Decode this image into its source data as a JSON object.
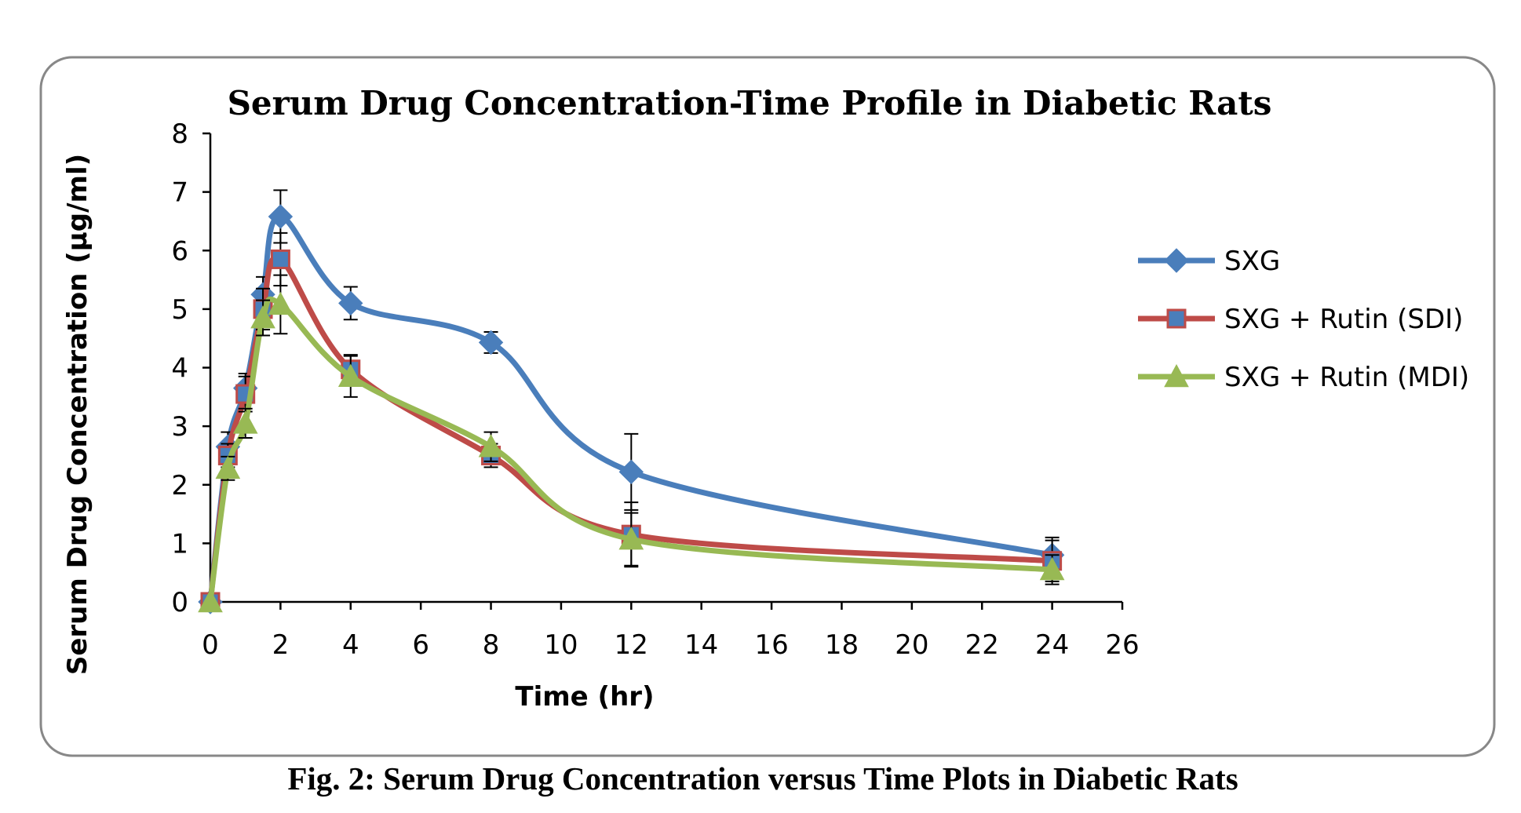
{
  "chart_data": {
    "type": "line",
    "title": "Serum Drug Concentration-Time Profile in Diabetic Rats",
    "xlabel": "Time (hr)",
    "ylabel": "Serum Drug Concentration (µg/ml)",
    "caption": "Fig. 2: Serum Drug Concentration versus Time Plots in Diabetic Rats",
    "xlim": [
      0,
      26
    ],
    "ylim": [
      0,
      8
    ],
    "xticks": [
      0,
      2,
      4,
      6,
      8,
      10,
      12,
      14,
      16,
      18,
      20,
      22,
      24,
      26
    ],
    "yticks": [
      0,
      1,
      2,
      3,
      4,
      5,
      6,
      7,
      8
    ],
    "legend_position": "right",
    "x": [
      0,
      0.5,
      1,
      1.5,
      2,
      4,
      8,
      12,
      24
    ],
    "series": [
      {
        "name": "SXG",
        "color": "#4A7EBB",
        "marker": "diamond",
        "values": [
          0,
          2.65,
          3.65,
          5.25,
          6.58,
          5.1,
          4.43,
          2.22,
          0.8
        ],
        "errors": [
          0,
          0.25,
          0.25,
          0.3,
          0.45,
          0.28,
          0.18,
          0.65,
          0.3
        ]
      },
      {
        "name": "SXG + Rutin (SDI)",
        "color": "#BE4B48",
        "marker": "square",
        "values": [
          0,
          2.5,
          3.55,
          5.0,
          5.85,
          3.97,
          2.5,
          1.15,
          0.7
        ],
        "errors": [
          0,
          0.2,
          0.3,
          0.35,
          0.45,
          0.25,
          0.2,
          0.55,
          0.35
        ]
      },
      {
        "name": "SXG + Rutin (MDI)",
        "color": "#98B954",
        "marker": "triangle",
        "values": [
          0,
          2.28,
          3.05,
          4.85,
          5.08,
          3.85,
          2.65,
          1.07,
          0.55
        ],
        "errors": [
          0,
          0.2,
          0.25,
          0.3,
          0.5,
          0.35,
          0.25,
          0.45,
          0.25
        ]
      }
    ]
  }
}
